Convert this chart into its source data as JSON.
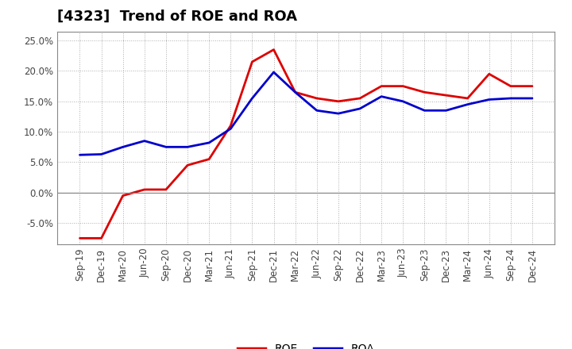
{
  "title": "[4323]  Trend of ROE and ROA",
  "labels": [
    "Sep-19",
    "Dec-19",
    "Mar-20",
    "Jun-20",
    "Sep-20",
    "Dec-20",
    "Mar-21",
    "Jun-21",
    "Sep-21",
    "Dec-21",
    "Mar-22",
    "Jun-22",
    "Sep-22",
    "Dec-22",
    "Mar-23",
    "Jun-23",
    "Sep-23",
    "Dec-23",
    "Mar-24",
    "Jun-24",
    "Sep-24",
    "Dec-24"
  ],
  "roe": [
    -7.5,
    -7.5,
    -0.5,
    0.5,
    0.5,
    4.5,
    5.5,
    11.0,
    21.5,
    23.5,
    16.5,
    15.5,
    15.0,
    15.5,
    17.5,
    17.5,
    16.5,
    16.0,
    15.5,
    19.5,
    17.5,
    17.5
  ],
  "roa": [
    6.2,
    6.3,
    7.5,
    8.5,
    7.5,
    7.5,
    8.2,
    10.5,
    15.5,
    19.8,
    16.5,
    13.5,
    13.0,
    13.8,
    15.8,
    15.0,
    13.5,
    13.5,
    14.5,
    15.3,
    15.5,
    15.5
  ],
  "roe_color": "#dd0000",
  "roa_color": "#0000cc",
  "ylim": [
    -8.5,
    26.5
  ],
  "yticks": [
    -5.0,
    0.0,
    5.0,
    10.0,
    15.0,
    20.0,
    25.0
  ],
  "grid_color": "#999999",
  "background_color": "#ffffff",
  "legend_roe": "ROE",
  "legend_roa": "ROA",
  "title_fontsize": 13,
  "tick_fontsize": 8.5,
  "line_width": 2.0
}
